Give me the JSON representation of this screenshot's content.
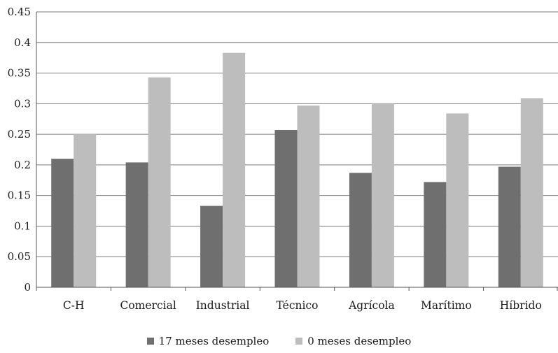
{
  "chart_data": {
    "type": "bar",
    "categories": [
      "C-H",
      "Comercial",
      "Industrial",
      "Técnico",
      "Agrícola",
      "Marítimo",
      "Híbrido"
    ],
    "series": [
      {
        "name": "17 meses desempleo",
        "values": [
          0.21,
          0.204,
          0.133,
          0.257,
          0.187,
          0.172,
          0.197
        ],
        "color": "#6f6f6f"
      },
      {
        "name": "0 meses desempleo",
        "values": [
          0.25,
          0.343,
          0.383,
          0.297,
          0.3,
          0.284,
          0.309
        ],
        "color": "#bdbdbd"
      }
    ],
    "yticks": [
      "0",
      "0.05",
      "0.1",
      "0.15",
      "0.2",
      "0.25",
      "0.3",
      "0.35",
      "0.4",
      "0.45"
    ],
    "ylim": [
      0,
      0.45
    ],
    "grid": true,
    "legend_position": "bottom"
  }
}
